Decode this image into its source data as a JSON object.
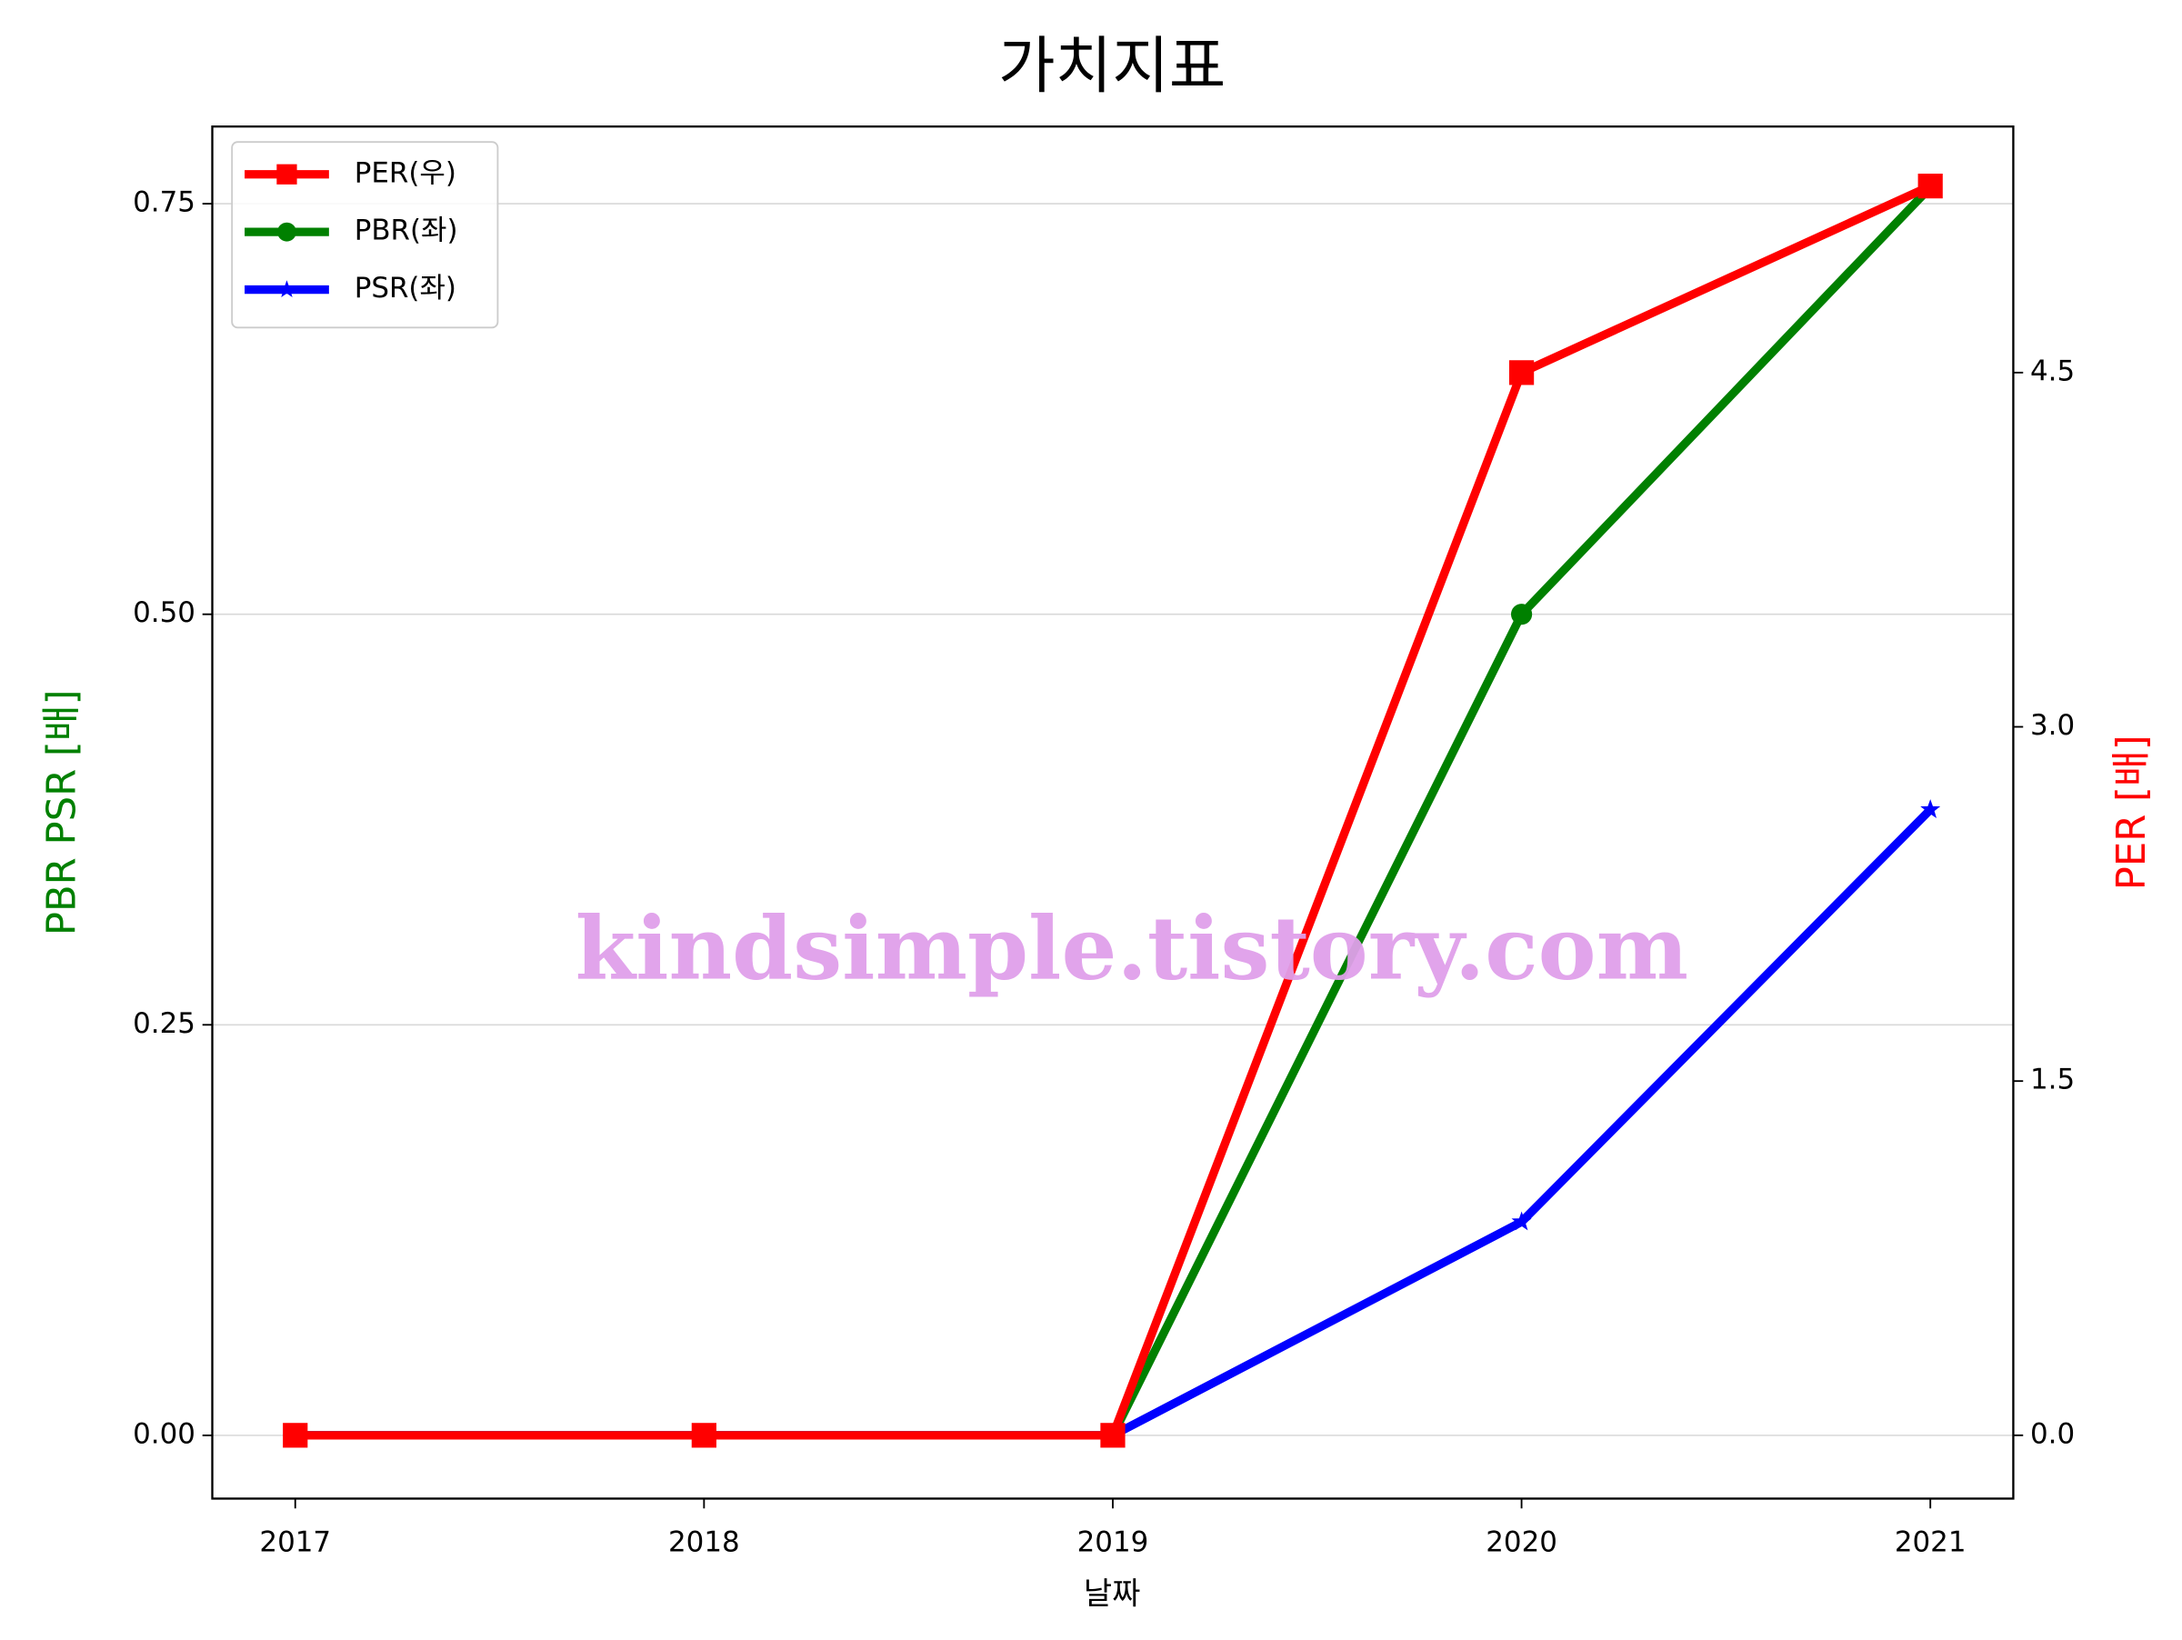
{
  "chart_data": {
    "type": "line",
    "title": "가치지표",
    "categories": [
      "2017",
      "2018",
      "2019",
      "2020",
      "2021"
    ],
    "xlabel": "날짜",
    "ylabel": "PBR PSR [배]",
    "y2label": "PER [배]",
    "ylabel_color": "#008000",
    "y2label_color": "#ff0000",
    "series": [
      {
        "name": "PER(우)",
        "color": "#ff0000",
        "marker": "square",
        "axis": "y2",
        "values": [
          0,
          0,
          0,
          4.5,
          5.29
        ]
      },
      {
        "name": "PBR(좌)",
        "color": "#008000",
        "marker": "circle",
        "values": [
          0,
          0,
          0,
          0.5,
          0.76
        ]
      },
      {
        "name": "PSR(좌)",
        "color": "#0000ff",
        "marker": "star",
        "values": [
          0,
          0,
          0,
          0.13,
          0.381
        ]
      }
    ],
    "ylim": [
      -0.0385,
      0.797
    ],
    "yticks": [
      {
        "value": 0,
        "label": "0.00"
      },
      0.25,
      {
        "value": 0.5,
        "label": "0.50"
      },
      0.75
    ],
    "y2lim": [
      -0.268,
      5.542
    ],
    "y2ticks": [
      {
        "value": 0,
        "label": "0.0"
      },
      1.5,
      {
        "value": 3,
        "label": "3.0"
      },
      4.5
    ],
    "grid": true,
    "legend": "upper left",
    "watermark": "kindsimple.tistory.com"
  }
}
